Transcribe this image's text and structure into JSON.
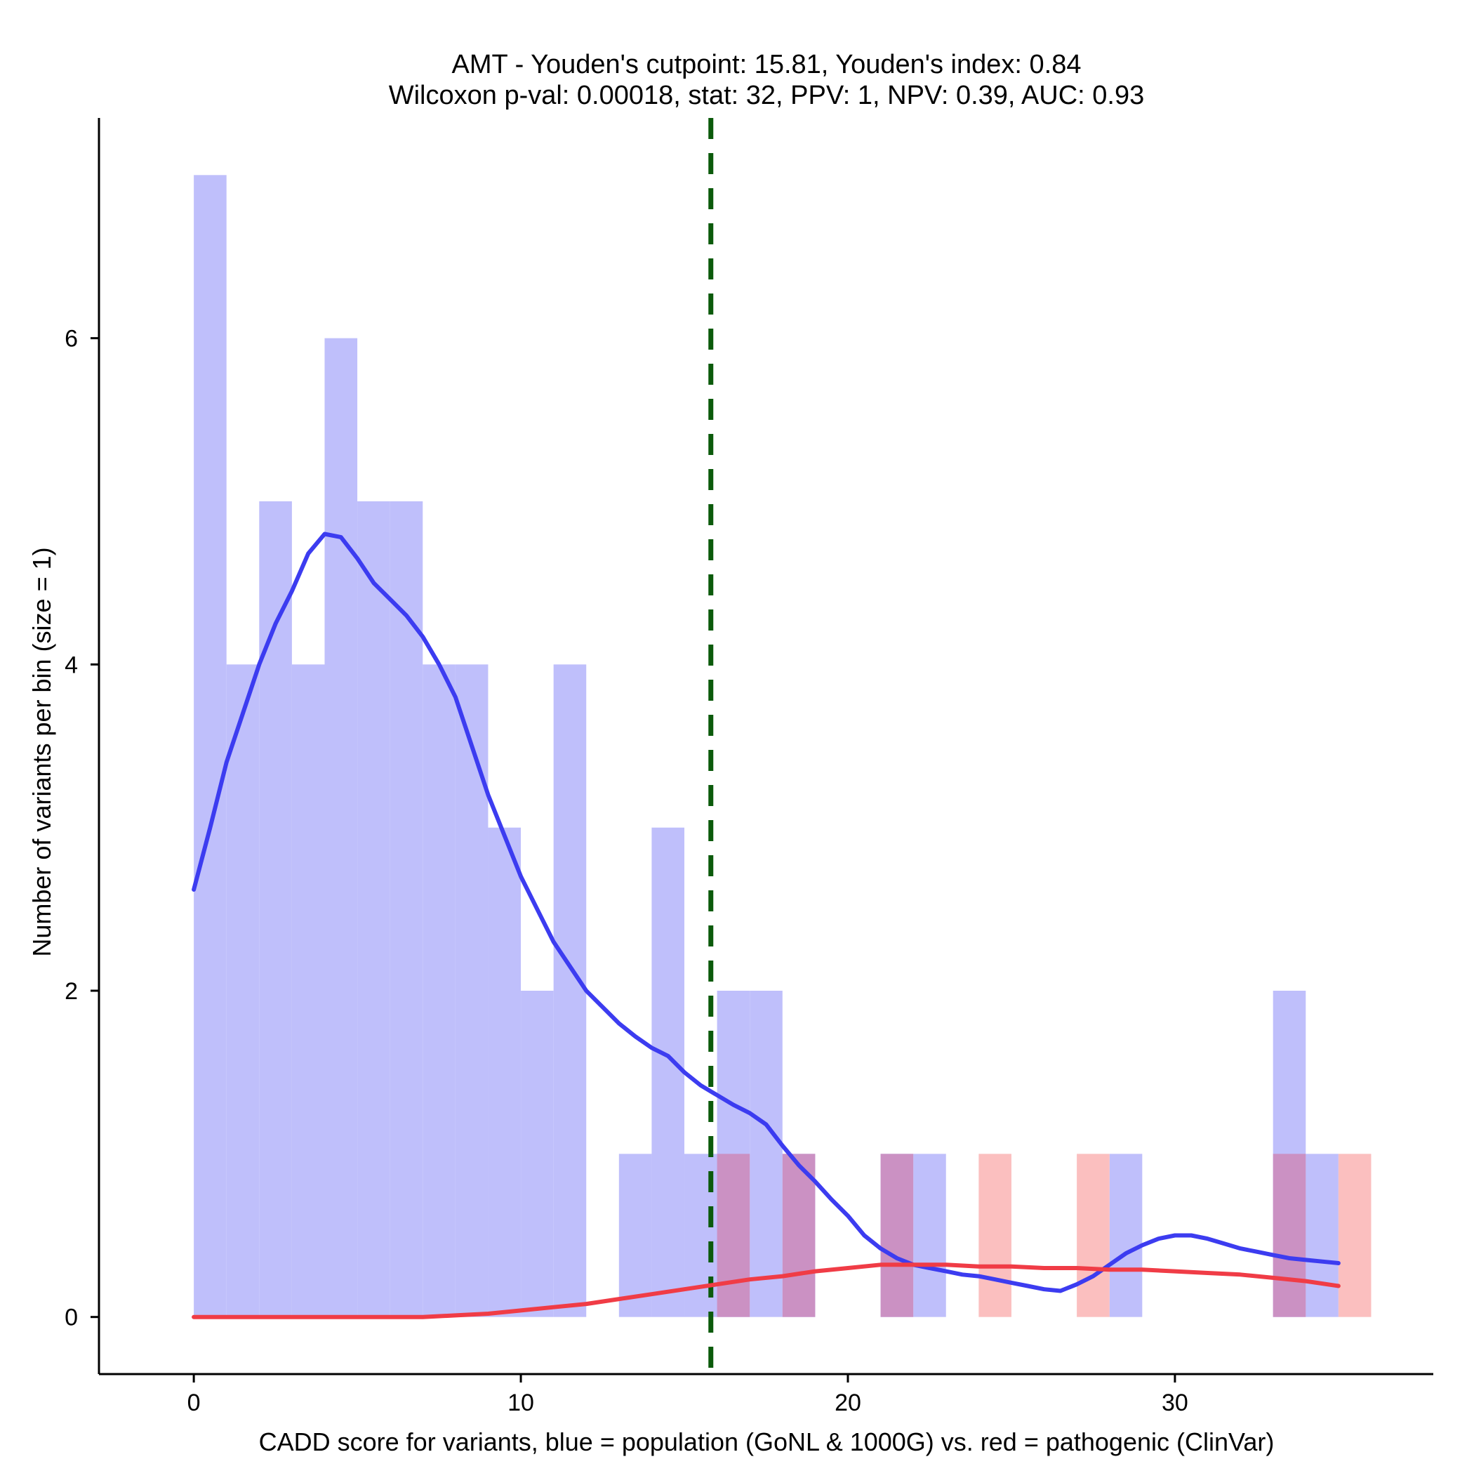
{
  "chart_data": {
    "type": "bar",
    "title": "AMT - Youden's cutpoint: 15.81, Youden's index: 0.84",
    "subtitle": "Wilcoxon p-val: 0.00018, stat: 32, PPV: 1, NPV: 0.39, AUC: 0.93",
    "xlabel": "CADD score for variants, blue = population (GoNL & 1000G) vs. red = pathogenic (ClinVar)",
    "ylabel": "Number of variants per bin (size = 1)",
    "xlim": [
      -2.9,
      37.9
    ],
    "ylim": [
      -0.35,
      7.35
    ],
    "x_ticks": [
      0,
      10,
      20,
      30
    ],
    "y_ticks": [
      0,
      2,
      4,
      6
    ],
    "bin_width": 1,
    "cutpoint": 15.81,
    "colors": {
      "population_bar": "#bfbffb",
      "pathogenic_bar": "#fbbfbf",
      "overlap_bar": "#cb91c3",
      "population_line": "#3c3cf0",
      "pathogenic_line": "#f03c46",
      "cutpoint_line": "#0b5a0b"
    },
    "series": [
      {
        "name": "population (GoNL & 1000G)",
        "bin_starts": [
          0,
          1,
          2,
          3,
          4,
          5,
          6,
          7,
          8,
          9,
          10,
          11,
          13,
          14,
          15,
          16,
          17,
          18,
          21,
          22,
          28,
          33,
          34
        ],
        "values": [
          7,
          4,
          5,
          4,
          6,
          5,
          5,
          4,
          4,
          3,
          2,
          4,
          1,
          3,
          1,
          2,
          2,
          1,
          1,
          1,
          1,
          2,
          1
        ]
      },
      {
        "name": "pathogenic (ClinVar)",
        "bin_starts": [
          16,
          18,
          21,
          24,
          27,
          33,
          35
        ],
        "values": [
          1,
          1,
          1,
          1,
          1,
          1,
          1
        ]
      }
    ],
    "density_lines": [
      {
        "name": "population density",
        "x": [
          0,
          0.5,
          1,
          1.5,
          2,
          2.5,
          3,
          3.5,
          4,
          4.5,
          5,
          5.5,
          6,
          6.5,
          7,
          7.5,
          8,
          8.5,
          9,
          9.5,
          10,
          10.5,
          11,
          11.5,
          12,
          12.5,
          13,
          13.5,
          14,
          14.5,
          15,
          15.5,
          16,
          16.5,
          17,
          17.5,
          18,
          18.5,
          19,
          19.5,
          20,
          20.5,
          21,
          21.5,
          22,
          22.5,
          23,
          23.5,
          24,
          24.5,
          25,
          25.5,
          26,
          26.5,
          27,
          27.5,
          28,
          28.5,
          29,
          29.5,
          30,
          30.5,
          31,
          31.5,
          32,
          32.5,
          33,
          33.5,
          34,
          34.5,
          35
        ],
        "y": [
          2.62,
          3.0,
          3.4,
          3.7,
          4.0,
          4.25,
          4.45,
          4.68,
          4.8,
          4.78,
          4.65,
          4.5,
          4.4,
          4.3,
          4.17,
          4.0,
          3.8,
          3.5,
          3.2,
          2.95,
          2.7,
          2.5,
          2.3,
          2.15,
          2.0,
          1.9,
          1.8,
          1.72,
          1.65,
          1.6,
          1.5,
          1.42,
          1.36,
          1.3,
          1.25,
          1.18,
          1.05,
          0.93,
          0.83,
          0.72,
          0.62,
          0.5,
          0.42,
          0.36,
          0.32,
          0.3,
          0.28,
          0.26,
          0.25,
          0.23,
          0.21,
          0.19,
          0.17,
          0.16,
          0.2,
          0.25,
          0.32,
          0.39,
          0.44,
          0.48,
          0.5,
          0.5,
          0.48,
          0.45,
          0.42,
          0.4,
          0.38,
          0.36,
          0.35,
          0.34,
          0.33
        ]
      },
      {
        "name": "pathogenic density",
        "x": [
          0,
          1,
          2,
          3,
          4,
          5,
          6,
          7,
          8,
          9,
          10,
          11,
          12,
          13,
          14,
          15,
          16,
          17,
          18,
          19,
          20,
          21,
          22,
          23,
          24,
          25,
          26,
          27,
          28,
          29,
          30,
          31,
          32,
          33,
          34,
          35
        ],
        "y": [
          0,
          0,
          0,
          0,
          0,
          0,
          0,
          0,
          0.01,
          0.02,
          0.04,
          0.06,
          0.08,
          0.11,
          0.14,
          0.17,
          0.2,
          0.23,
          0.25,
          0.28,
          0.3,
          0.32,
          0.32,
          0.32,
          0.31,
          0.31,
          0.3,
          0.3,
          0.29,
          0.29,
          0.28,
          0.27,
          0.26,
          0.24,
          0.22,
          0.19
        ]
      }
    ]
  }
}
